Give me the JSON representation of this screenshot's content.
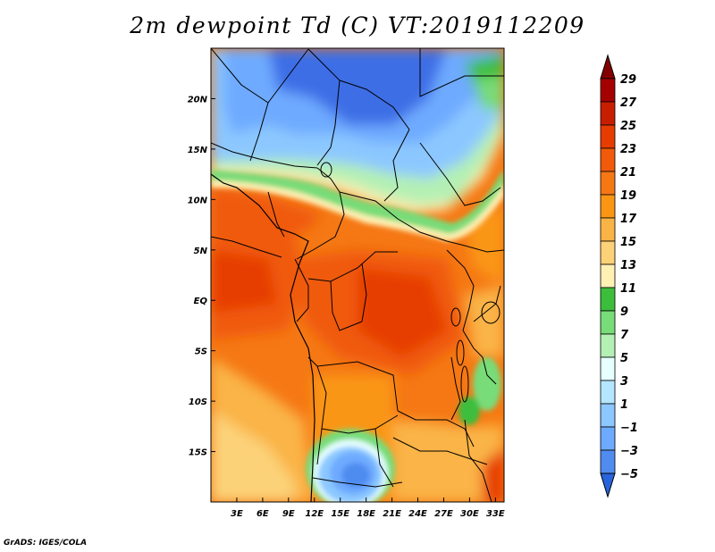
{
  "title": "2m dewpoint Td (C) VT:2019112209",
  "credit": "GrADS: IGES/COLA",
  "map": {
    "lon_range": [
      0,
      34
    ],
    "lat_range": [
      -20,
      25
    ],
    "x_ticks": [
      {
        "value": 3,
        "label": "3E"
      },
      {
        "value": 6,
        "label": "6E"
      },
      {
        "value": 9,
        "label": "9E"
      },
      {
        "value": 12,
        "label": "12E"
      },
      {
        "value": 15,
        "label": "15E"
      },
      {
        "value": 18,
        "label": "18E"
      },
      {
        "value": 21,
        "label": "21E"
      },
      {
        "value": 24,
        "label": "24E"
      },
      {
        "value": 27,
        "label": "27E"
      },
      {
        "value": 30,
        "label": "30E"
      },
      {
        "value": 33,
        "label": "33E"
      }
    ],
    "y_ticks": [
      {
        "value": 20,
        "label": "20N"
      },
      {
        "value": 15,
        "label": "15N"
      },
      {
        "value": 10,
        "label": "10N"
      },
      {
        "value": 5,
        "label": "5N"
      },
      {
        "value": 0,
        "label": "EQ"
      },
      {
        "value": -5,
        "label": "5S"
      },
      {
        "value": -10,
        "label": "10S"
      },
      {
        "value": -15,
        "label": "15S"
      }
    ]
  },
  "colorbar": {
    "levels": [
      {
        "label": "29",
        "color": "#a50000"
      },
      {
        "label": "27",
        "color": "#c81e00"
      },
      {
        "label": "25",
        "color": "#e63c00"
      },
      {
        "label": "23",
        "color": "#f05a0a"
      },
      {
        "label": "21",
        "color": "#f57814"
      },
      {
        "label": "19",
        "color": "#fa9614"
      },
      {
        "label": "17",
        "color": "#fab446"
      },
      {
        "label": "15",
        "color": "#fcd278"
      },
      {
        "label": "13",
        "color": "#fff0b4"
      },
      {
        "label": "11",
        "color": "#3cbe3c"
      },
      {
        "label": "9",
        "color": "#78dc78"
      },
      {
        "label": "7",
        "color": "#b4f0b4"
      },
      {
        "label": "5",
        "color": "#e6ffff"
      },
      {
        "label": "3",
        "color": "#b4e6ff"
      },
      {
        "label": "1",
        "color": "#8cc8ff"
      },
      {
        "label": "−1",
        "color": "#6eaaff"
      },
      {
        "label": "−3",
        "color": "#508cf0"
      },
      {
        "label": "−5",
        "color": "#3c6ee6"
      }
    ],
    "top_color": "#820000",
    "bottom_color": "#2864dc"
  }
}
